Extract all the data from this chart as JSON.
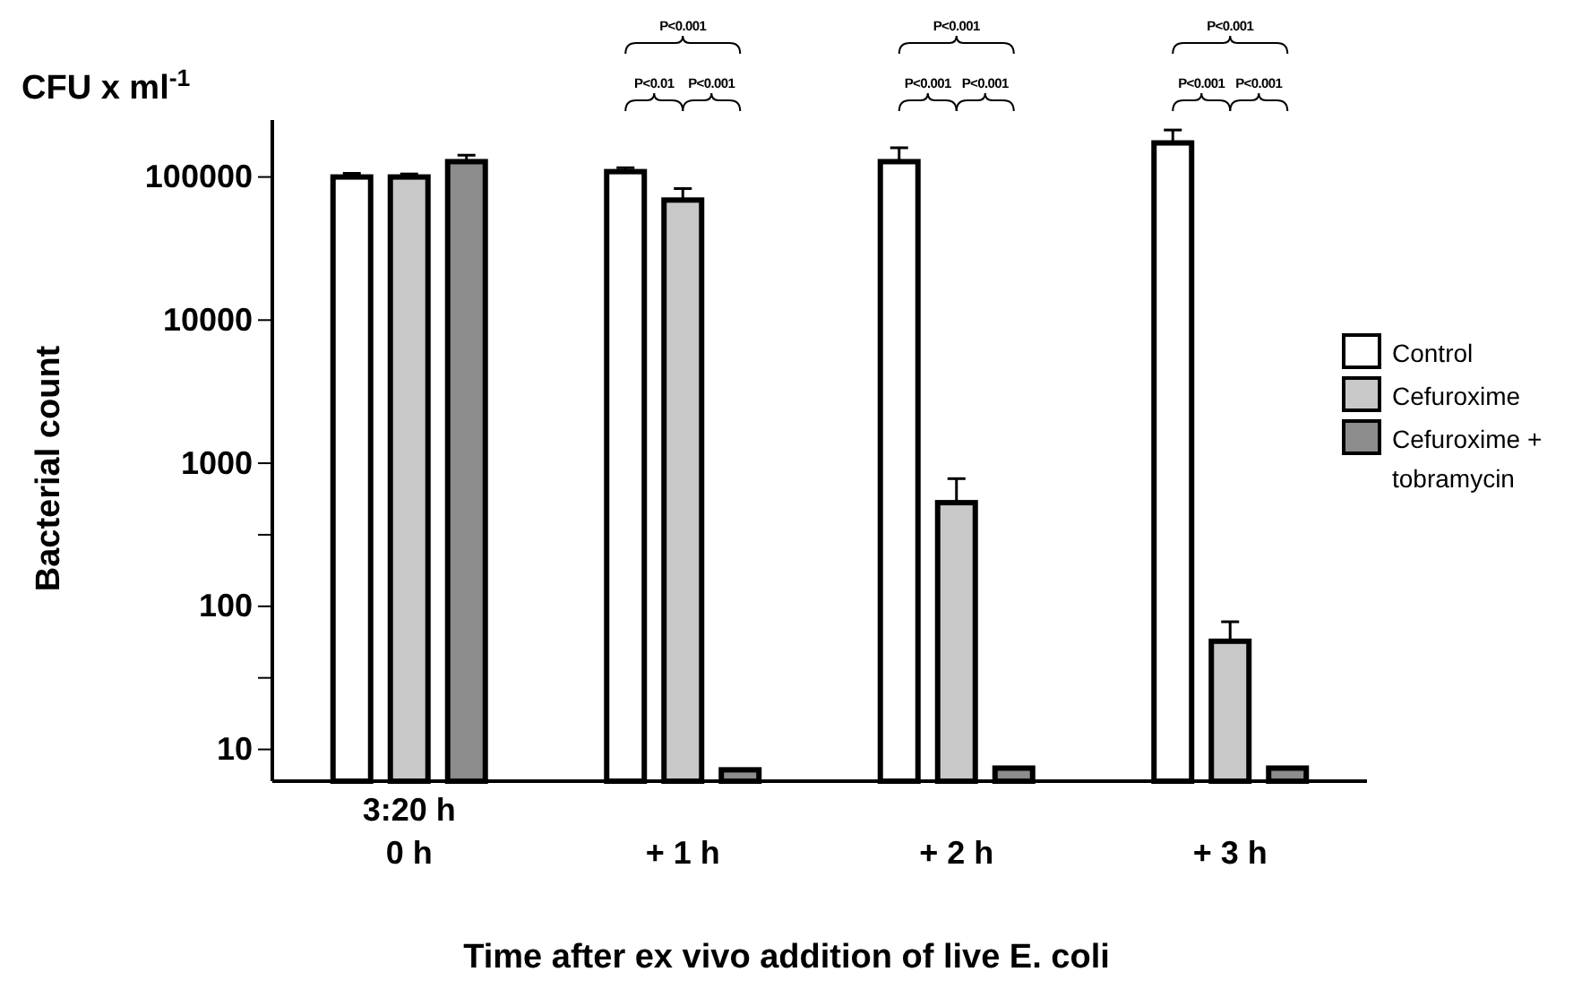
{
  "chart_data": {
    "type": "bar",
    "ylabel": "Bacterial count",
    "xlabel": "Time after ex vivo addition of live E. coli",
    "categories": [
      "3:20 h\n0 h",
      "+ 1 h",
      "+ 2 h",
      "+ 3 h"
    ],
    "series": [
      {
        "name": "Control",
        "color": "#ffffff",
        "values": [
          100000,
          109000,
          128000,
          173000
        ],
        "errors": [
          [
            100000,
            106000
          ],
          [
            109000,
            116000
          ],
          [
            128000,
            160000
          ],
          [
            173000,
            213000
          ]
        ]
      },
      {
        "name": "Cefuroxime",
        "color": "#c8c8c8",
        "values": [
          100000,
          69000,
          530,
          57
        ],
        "errors": [
          [
            100000,
            105000
          ],
          [
            69000,
            83000
          ],
          [
            530,
            780
          ],
          [
            57,
            78
          ]
        ]
      },
      {
        "name": "Cefuroxime + tobramycin",
        "color": "#8c8c8c",
        "values": [
          128000,
          7.2,
          7.4,
          7.4
        ],
        "errors": [
          [
            128000,
            142000
          ],
          null,
          null,
          null
        ]
      }
    ],
    "log": true,
    "ylim": [
      6,
      250000
    ],
    "yticks": [
      10,
      {
        "value": 31.62,
        "label": null
      },
      100,
      {
        "value": 316.2,
        "label": null
      },
      1000,
      10000,
      100000
    ],
    "legend": "right",
    "grid": false,
    "annotations": [
      "CFU x ml$^{-1}$",
      "P<0.001",
      "P<0.01",
      "P<0.001",
      "P<0.001",
      "P<0.001",
      "P<0.001",
      "P<0.001",
      "P<0.001",
      "P<0.001"
    ]
  }
}
